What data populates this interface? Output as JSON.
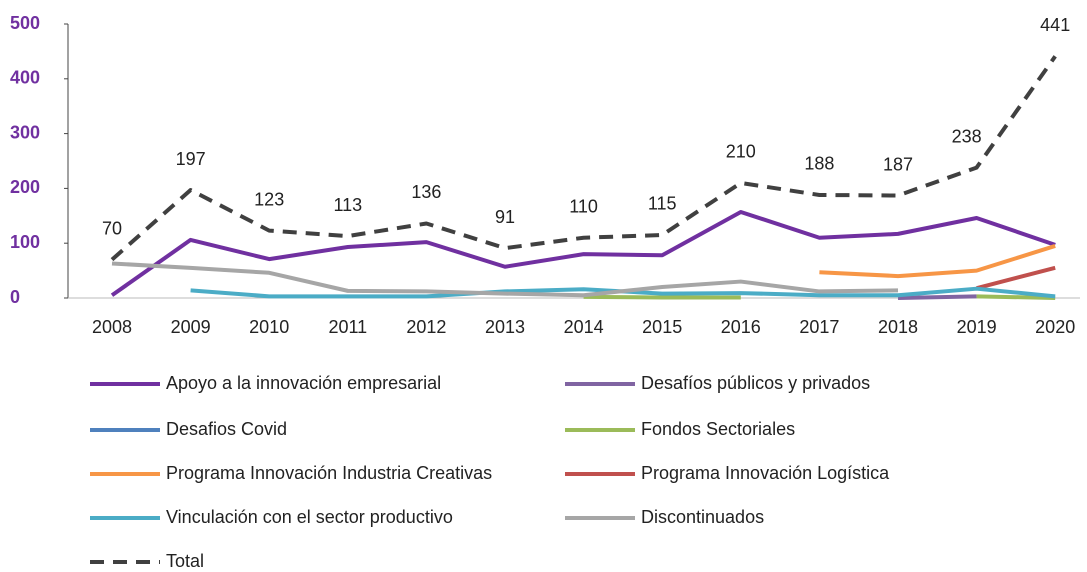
{
  "chart_data": {
    "type": "line",
    "categories": [
      "2008",
      "2009",
      "2010",
      "2011",
      "2012",
      "2013",
      "2014",
      "2015",
      "2016",
      "2017",
      "2018",
      "2019",
      "2020"
    ],
    "ylim": [
      0,
      500
    ],
    "yticks": [
      0,
      100,
      200,
      300,
      400,
      500
    ],
    "series": [
      {
        "name": "Apoyo a la innovación empresarial",
        "color": "#7030a0",
        "values": [
          5,
          106,
          71,
          93,
          102,
          57,
          80,
          78,
          157,
          110,
          117,
          146,
          97
        ]
      },
      {
        "name": "Desafíos públicos y privados",
        "color": "#8064a2",
        "values": [
          null,
          null,
          null,
          null,
          null,
          null,
          null,
          null,
          null,
          null,
          0,
          3,
          null
        ]
      },
      {
        "name": "Desafios Covid",
        "color": "#4f81bd",
        "values": [
          null,
          null,
          null,
          null,
          null,
          null,
          null,
          null,
          null,
          null,
          null,
          null,
          3
        ]
      },
      {
        "name": "Fondos Sectoriales",
        "color": "#9bbb59",
        "values": [
          null,
          null,
          null,
          null,
          null,
          null,
          2,
          1,
          1,
          null,
          null,
          3,
          0
        ]
      },
      {
        "name": "Programa Innovación Industria Creativas",
        "color": "#f79646",
        "values": [
          null,
          null,
          null,
          null,
          null,
          null,
          null,
          null,
          null,
          47,
          40,
          50,
          95
        ]
      },
      {
        "name": "Programa Innovación Logística",
        "color": "#c0504d",
        "values": [
          null,
          null,
          null,
          null,
          null,
          null,
          null,
          null,
          null,
          null,
          null,
          18,
          55
        ]
      },
      {
        "name": "Vinculación con el sector productivo",
        "color": "#4bacc6",
        "values": [
          null,
          14,
          3,
          3,
          3,
          12,
          16,
          8,
          9,
          5,
          5,
          17,
          3
        ]
      },
      {
        "name": "Discontinuados",
        "color": "#a6a6a6",
        "values": [
          63,
          55,
          46,
          13,
          12,
          8,
          5,
          20,
          30,
          12,
          14,
          null,
          null
        ]
      },
      {
        "name": "Total",
        "color": "#404040",
        "dash": true,
        "data_labels": true,
        "values": [
          70,
          197,
          123,
          113,
          136,
          91,
          110,
          115,
          210,
          188,
          187,
          238,
          441
        ]
      }
    ]
  }
}
